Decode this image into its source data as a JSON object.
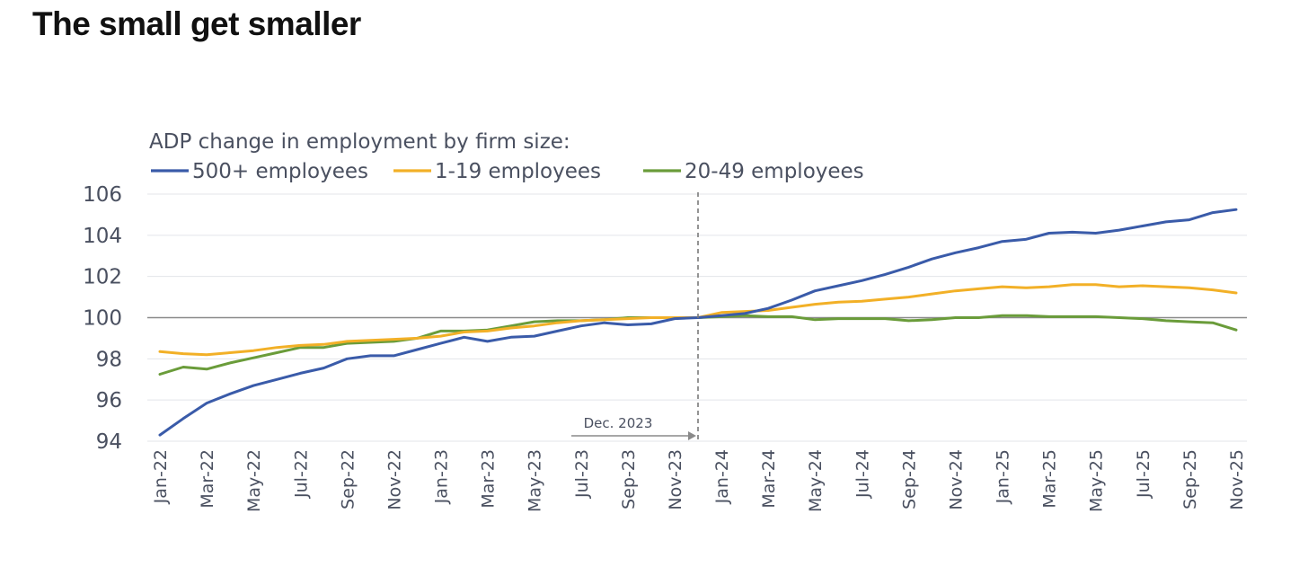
{
  "headline": "The small get smaller",
  "chart_data": {
    "type": "line",
    "title": "ADP change in employment by firm size:",
    "xlabel": "",
    "ylabel": "",
    "ylim": [
      94,
      106
    ],
    "yticks": [
      94,
      96,
      98,
      100,
      102,
      104,
      106
    ],
    "grid": true,
    "reference_line": 100,
    "tick_labels": [
      "Jan-22",
      "Mar-22",
      "May-22",
      "Jul-22",
      "Sep-22",
      "Nov-22",
      "Jan-23",
      "Mar-23",
      "May-23",
      "Jul-23",
      "Sep-23",
      "Nov-23",
      "Jan-24",
      "Mar-24",
      "May-24",
      "Jul-24",
      "Sep-24",
      "Nov-24",
      "Jan-25",
      "Mar-25",
      "May-25",
      "Jul-25",
      "Sep-25",
      "Nov-25"
    ],
    "x": [
      "Jan-22",
      "Feb-22",
      "Mar-22",
      "Apr-22",
      "May-22",
      "Jun-22",
      "Jul-22",
      "Aug-22",
      "Sep-22",
      "Oct-22",
      "Nov-22",
      "Dec-22",
      "Jan-23",
      "Feb-23",
      "Mar-23",
      "Apr-23",
      "May-23",
      "Jun-23",
      "Jul-23",
      "Aug-23",
      "Sep-23",
      "Oct-23",
      "Nov-23",
      "Dec-23",
      "Jan-24",
      "Feb-24",
      "Mar-24",
      "Apr-24",
      "May-24",
      "Jun-24",
      "Jul-24",
      "Aug-24",
      "Sep-24",
      "Oct-24",
      "Nov-24",
      "Dec-24",
      "Jan-25",
      "Feb-25",
      "Mar-25",
      "Apr-25",
      "May-25",
      "Jun-25",
      "Jul-25",
      "Aug-25",
      "Sep-25",
      "Oct-25",
      "Nov-25"
    ],
    "annotation": {
      "label": "Dec. 2023",
      "at": "Dec-23"
    },
    "legend_position": "top-left",
    "series": [
      {
        "name": "500+ employees",
        "color": "#3a5ba9",
        "values": [
          94.3,
          95.1,
          95.85,
          96.3,
          96.7,
          97.0,
          97.3,
          97.55,
          98.0,
          98.15,
          98.15,
          98.45,
          98.75,
          99.05,
          98.85,
          99.05,
          99.1,
          99.35,
          99.6,
          99.75,
          99.65,
          99.7,
          99.95,
          100.0,
          100.1,
          100.2,
          100.45,
          100.85,
          101.3,
          101.55,
          101.8,
          102.1,
          102.45,
          102.85,
          103.15,
          103.4,
          103.7,
          103.8,
          104.1,
          104.15,
          104.1,
          104.25,
          104.45,
          104.65,
          104.75,
          105.1,
          105.25
        ]
      },
      {
        "name": "1-19 employees",
        "color": "#f2b027",
        "values": [
          98.35,
          98.25,
          98.2,
          98.3,
          98.4,
          98.55,
          98.65,
          98.7,
          98.85,
          98.9,
          98.95,
          99.0,
          99.1,
          99.3,
          99.35,
          99.5,
          99.6,
          99.75,
          99.85,
          99.9,
          99.95,
          100.0,
          100.0,
          100.0,
          100.25,
          100.3,
          100.35,
          100.5,
          100.65,
          100.75,
          100.8,
          100.9,
          101.0,
          101.15,
          101.3,
          101.4,
          101.5,
          101.45,
          101.5,
          101.6,
          101.6,
          101.5,
          101.55,
          101.5,
          101.45,
          101.35,
          101.2
        ]
      },
      {
        "name": "20-49 employees",
        "color": "#6a9c3a",
        "values": [
          97.25,
          97.6,
          97.5,
          97.8,
          98.05,
          98.3,
          98.55,
          98.55,
          98.75,
          98.8,
          98.85,
          99.0,
          99.35,
          99.35,
          99.4,
          99.6,
          99.8,
          99.85,
          99.85,
          99.9,
          100.0,
          100.0,
          100.0,
          100.0,
          100.05,
          100.1,
          100.05,
          100.05,
          99.9,
          99.95,
          99.95,
          99.95,
          99.85,
          99.9,
          100.0,
          100.0,
          100.1,
          100.1,
          100.05,
          100.05,
          100.05,
          100.0,
          99.95,
          99.85,
          99.8,
          99.75,
          99.4
        ]
      }
    ]
  }
}
